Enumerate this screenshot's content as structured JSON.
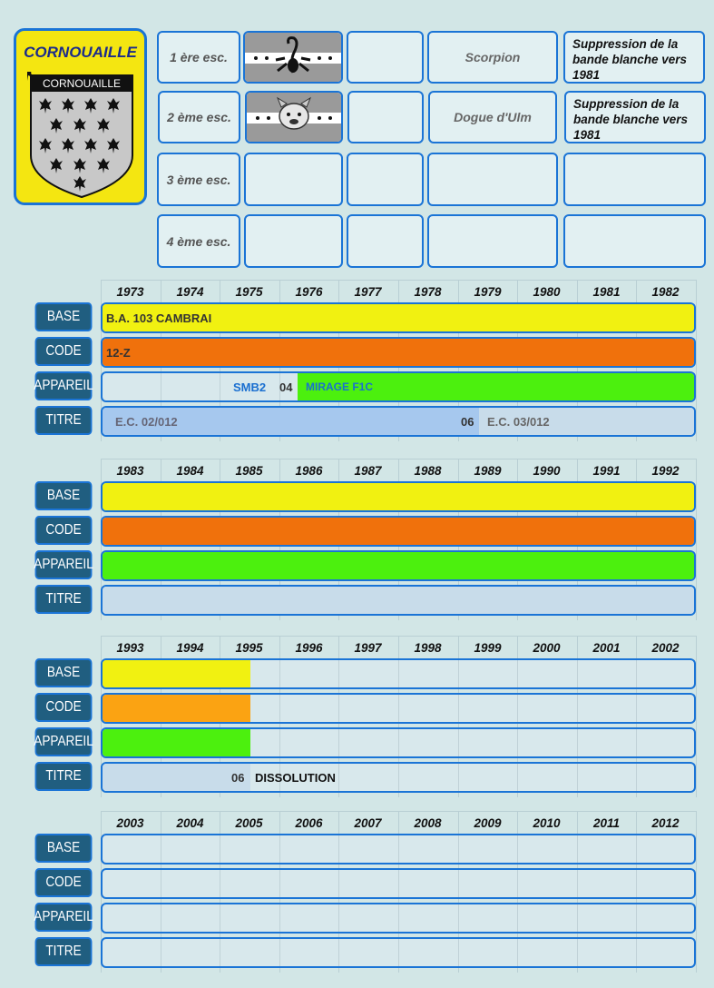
{
  "unit": {
    "name": "CORNOUAILLE",
    "badge_text": "CORNOUAILLE"
  },
  "escadrilles": [
    {
      "label": "1 ère esc.",
      "name": "Scorpion",
      "note": "Suppression de la bande blanche vers 1981",
      "insignia": "scorpion-insignia"
    },
    {
      "label": "2 ème esc.",
      "name": "Dogue d'Ulm",
      "note": "Suppression de la bande blanche vers 1981",
      "insignia": "dogue-insignia"
    },
    {
      "label": "3 ème esc.",
      "name": "",
      "note": ""
    },
    {
      "label": "4 ème esc.",
      "name": "",
      "note": ""
    }
  ],
  "row_labels": {
    "base": "BASE",
    "code": "CODE",
    "appareil": "APPAREIL",
    "titre": "TITRE"
  },
  "decades": [
    {
      "years": [
        "1973",
        "1974",
        "1975",
        "1976",
        "1977",
        "1978",
        "1979",
        "1980",
        "1981",
        "1982"
      ],
      "base": {
        "text": "B.A. 103 CAMBRAI",
        "fill_until_fraction": 1.0,
        "color": "#f1f111"
      },
      "code": {
        "text": "12-Z",
        "fill_until_fraction": 1.0,
        "color": "#f0710c"
      },
      "appareil": {
        "text_a": "SMB2",
        "text_b": "04",
        "text_c": "MIRAGE F1C",
        "color": "#4cf00e"
      },
      "titre": {
        "text_a": "E.C. 02/012",
        "text_b": "06",
        "text_c": "E.C. 03/012",
        "color": "#a6c8ee"
      }
    },
    {
      "years": [
        "1983",
        "1984",
        "1985",
        "1986",
        "1987",
        "1988",
        "1989",
        "1990",
        "1991",
        "1992"
      ],
      "base": {
        "fill_until_fraction": 1.0,
        "color": "#f1f111"
      },
      "code": {
        "fill_until_fraction": 1.0,
        "color": "#f0710c"
      },
      "appareil": {
        "fill_until_fraction": 1.0,
        "color": "#4cf00e"
      },
      "titre": {
        "fill_until_fraction": 1.0,
        "color": "#c8dcea"
      }
    },
    {
      "years": [
        "1993",
        "1994",
        "1995",
        "1996",
        "1997",
        "1998",
        "1999",
        "2000",
        "2001",
        "2002"
      ],
      "base": {
        "fill_until_fraction": 0.25,
        "color": "#f1f111"
      },
      "code": {
        "fill_until_fraction": 0.25,
        "color": "#fba312"
      },
      "appareil": {
        "fill_until_fraction": 0.25,
        "color": "#4cf00e"
      },
      "titre": {
        "text_a": "06",
        "text_b": "DISSOLUTION",
        "fill_until_fraction": 0.25,
        "color": "#c8dcea"
      }
    },
    {
      "years": [
        "2003",
        "2004",
        "2005",
        "2006",
        "2007",
        "2008",
        "2009",
        "2010",
        "2011",
        "2012"
      ]
    }
  ]
}
